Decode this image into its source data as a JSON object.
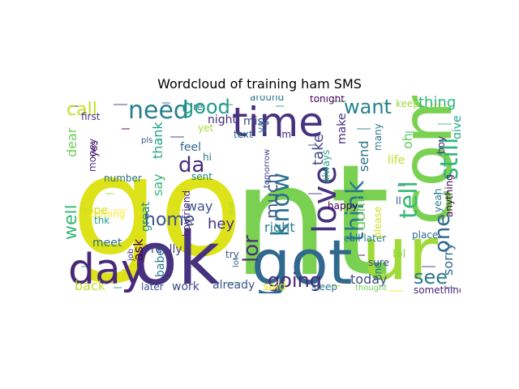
{
  "title": "Wordcloud of training ham SMS",
  "colors": {
    "background": "#ffffff",
    "title": "#000000",
    "palette": [
      "#440154",
      "#46327e",
      "#365c8d",
      "#277f8e",
      "#1fa187",
      "#4ac16d",
      "#a0da39",
      "#fde725"
    ]
  },
  "words": [
    {
      "text": "go",
      "color": "#dde318"
    },
    {
      "text": "nt",
      "color": "#7ad151"
    },
    {
      "text": "ok",
      "color": "#46327e"
    },
    {
      "text": "got",
      "color": "#31688e"
    },
    {
      "text": "come",
      "color": "#7ad151"
    },
    {
      "text": "ur",
      "color": "#a0da39"
    },
    {
      "text": "day",
      "color": "#482878"
    },
    {
      "text": "time",
      "color": "#46327e"
    },
    {
      "text": "need",
      "color": "#277f8e"
    },
    {
      "text": "call",
      "color": "#c2df23"
    },
    {
      "text": "love",
      "color": "#46327e"
    },
    {
      "text": "good",
      "color": "#1f9e89"
    },
    {
      "text": "want",
      "color": "#26828e"
    },
    {
      "text": "know",
      "color": "#2c728e"
    },
    {
      "text": "going",
      "color": "#482878"
    },
    {
      "text": "home",
      "color": "#3b528b"
    },
    {
      "text": "think",
      "color": "#2a788e"
    },
    {
      "text": "tell",
      "color": "#35b779"
    },
    {
      "text": "lor",
      "color": "#46327e"
    },
    {
      "text": "still",
      "color": "#2fb47c"
    },
    {
      "text": "one",
      "color": "#31688e"
    },
    {
      "text": "see",
      "color": "#2a788e"
    },
    {
      "text": "da",
      "color": "#472d7b"
    },
    {
      "text": "well",
      "color": "#35b779"
    },
    {
      "text": "thing",
      "color": "#2fb47c"
    },
    {
      "text": "much",
      "color": "#38588c"
    },
    {
      "text": "today",
      "color": "#3e4989"
    },
    {
      "text": "dont",
      "color": "#6ece58"
    },
    {
      "text": "sorry",
      "color": "#31688e"
    },
    {
      "text": "say",
      "color": "#35b779"
    },
    {
      "text": "take",
      "color": "#3e4989"
    },
    {
      "text": "oh",
      "color": "#5ec962"
    },
    {
      "text": "back",
      "color": "#bddf26"
    },
    {
      "text": "way",
      "color": "#3b528b"
    },
    {
      "text": "hey",
      "color": "#46337f"
    },
    {
      "text": "work",
      "color": "#3e4989"
    },
    {
      "text": "already",
      "color": "#3b528b"
    },
    {
      "text": "right",
      "color": "#26828e"
    },
    {
      "text": "make",
      "color": "#46327e"
    },
    {
      "text": "give",
      "color": "#22a884"
    },
    {
      "text": "send",
      "color": "#2c728e"
    },
    {
      "text": "thank",
      "color": "#20a386"
    },
    {
      "text": "ask",
      "color": "#440154"
    },
    {
      "text": "hope",
      "color": "#d0e11c"
    },
    {
      "text": "great",
      "color": "#228d8d"
    },
    {
      "text": "feel",
      "color": "#31688e"
    },
    {
      "text": "hi",
      "color": "#2a788e"
    },
    {
      "text": "sent",
      "color": "#26828e"
    },
    {
      "text": "said",
      "color": "#e5e419"
    },
    {
      "text": "meet",
      "color": "#2c728e"
    },
    {
      "text": "night",
      "color": "#472c7a"
    },
    {
      "text": "miss",
      "color": "#3e4989"
    },
    {
      "text": "yeah",
      "color": "#2a788e"
    },
    {
      "text": "something",
      "color": "#482475"
    },
    {
      "text": "later",
      "color": "#3b528b"
    },
    {
      "text": "sleep",
      "color": "#2c728e"
    },
    {
      "text": "really",
      "color": "#433e85"
    },
    {
      "text": "babe",
      "color": "#2a788e"
    },
    {
      "text": "number",
      "color": "#2c728e"
    },
    {
      "text": "first",
      "color": "#46327e"
    },
    {
      "text": "text",
      "color": "#31688e"
    },
    {
      "text": "im",
      "color": "#482878"
    },
    {
      "text": "yet",
      "color": "#a5db36"
    },
    {
      "text": "re",
      "color": "#277f8e"
    },
    {
      "text": "yes",
      "color": "#440154"
    },
    {
      "text": "dear",
      "color": "#6ece58"
    },
    {
      "text": "life",
      "color": "#c2df23"
    },
    {
      "text": "always",
      "color": "#22a884"
    },
    {
      "text": "try",
      "color": "#3b528b"
    },
    {
      "text": "call later",
      "color": "#2a788e"
    },
    {
      "text": "sure",
      "color": "#3e4989"
    },
    {
      "text": "place",
      "color": "#31688e"
    },
    {
      "text": "please",
      "color": "#cde11d"
    },
    {
      "text": "happy",
      "color": "#440154"
    },
    {
      "text": "tomorrow",
      "color": "#3e4989"
    },
    {
      "text": "around",
      "color": "#2c728e"
    },
    {
      "text": "tonight",
      "color": "#440154"
    },
    {
      "text": "keep",
      "color": "#9bd93c"
    },
    {
      "text": "anything",
      "color": "#440154"
    },
    {
      "text": "boy",
      "color": "#482878"
    },
    {
      "text": "thk",
      "color": "#1fa187"
    },
    {
      "text": "coming",
      "color": "#fde725"
    },
    {
      "text": "thought",
      "color": "#6ece58"
    },
    {
      "text": "find",
      "color": "#2c728e"
    },
    {
      "text": "ll",
      "color": "#3b528b"
    },
    {
      "text": "lol",
      "color": "#8fd744"
    },
    {
      "text": "many",
      "color": "#2a788e"
    },
    {
      "text": "money",
      "color": "#472d7b"
    },
    {
      "text": "wat",
      "color": "#b5de2b"
    },
    {
      "text": "pls",
      "color": "#3b528b"
    },
    {
      "text": "job",
      "color": "#46327e"
    },
    {
      "text": "boyfriend",
      "color": "#482878"
    },
    {
      "text": "lot",
      "color": "#31688e"
    },
    {
      "text": "ya",
      "color": "#2c728e"
    }
  ]
}
